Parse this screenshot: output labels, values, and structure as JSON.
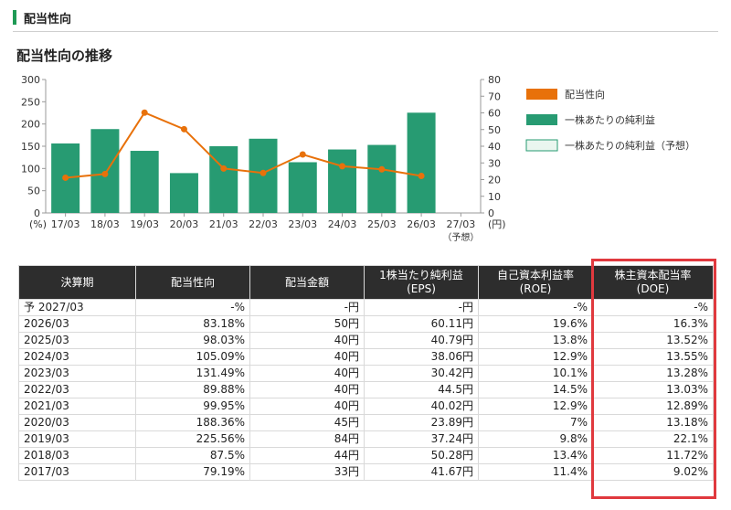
{
  "section": {
    "title": "配当性向"
  },
  "chart_data": {
    "type": "bar",
    "title": "配当性向の推移",
    "categories": [
      "17/03",
      "18/03",
      "19/03",
      "20/03",
      "21/03",
      "22/03",
      "23/03",
      "24/03",
      "25/03",
      "26/03",
      "27/03"
    ],
    "category_sub": [
      "",
      "",
      "",
      "",
      "",
      "",
      "",
      "",
      "",
      "",
      "（予想）"
    ],
    "left_axis": {
      "unit": "(%)",
      "ylim": [
        0,
        300
      ],
      "ticks": [
        0,
        50,
        100,
        150,
        200,
        250,
        300
      ]
    },
    "right_axis": {
      "unit": "(円)",
      "ylim": [
        0,
        80
      ],
      "ticks": [
        0,
        10,
        20,
        30,
        40,
        50,
        60,
        70,
        80
      ]
    },
    "series": [
      {
        "name": "配当性向",
        "kind": "line",
        "axis": "left",
        "color": "#e8710a",
        "values": [
          79.19,
          87.5,
          225.56,
          188.36,
          99.95,
          89.88,
          131.49,
          105.09,
          98.03,
          83.18,
          null
        ]
      },
      {
        "name": "一株あたりの純利益",
        "kind": "bar",
        "axis": "right",
        "color": "#279b72",
        "values": [
          41.67,
          50.28,
          37.24,
          23.89,
          40.02,
          44.5,
          30.42,
          38.06,
          40.79,
          60.11,
          null
        ]
      },
      {
        "name": "一株あたりの純利益（予想）",
        "kind": "bar",
        "axis": "right",
        "color": "#eaf6ef",
        "border": "#279b72",
        "values": [
          null,
          null,
          null,
          null,
          null,
          null,
          null,
          null,
          null,
          null,
          null
        ]
      }
    ],
    "grid": false,
    "legend_position": "right"
  },
  "table": {
    "headers": [
      [
        "決算期"
      ],
      [
        "配当性向"
      ],
      [
        "配当金額"
      ],
      [
        "1株当たり純利益",
        "(EPS)"
      ],
      [
        "自己資本利益率",
        "(ROE)"
      ],
      [
        "株主資本配当率",
        "(DOE)"
      ]
    ],
    "rows": [
      [
        "予 2027/03",
        "-%",
        "-円",
        "-円",
        "-%",
        "-%"
      ],
      [
        "2026/03",
        "83.18%",
        "50円",
        "60.11円",
        "19.6%",
        "16.3%"
      ],
      [
        "2025/03",
        "98.03%",
        "40円",
        "40.79円",
        "13.8%",
        "13.52%"
      ],
      [
        "2024/03",
        "105.09%",
        "40円",
        "38.06円",
        "12.9%",
        "13.55%"
      ],
      [
        "2023/03",
        "131.49%",
        "40円",
        "30.42円",
        "10.1%",
        "13.28%"
      ],
      [
        "2022/03",
        "89.88%",
        "40円",
        "44.5円",
        "14.5%",
        "13.03%"
      ],
      [
        "2021/03",
        "99.95%",
        "40円",
        "40.02円",
        "12.9%",
        "12.89%"
      ],
      [
        "2020/03",
        "188.36%",
        "45円",
        "23.89円",
        "7%",
        "13.18%"
      ],
      [
        "2019/03",
        "225.56%",
        "84円",
        "37.24円",
        "9.8%",
        "22.1%"
      ],
      [
        "2018/03",
        "87.5%",
        "44円",
        "50.28円",
        "13.4%",
        "11.72%"
      ],
      [
        "2017/03",
        "79.19%",
        "33円",
        "41.67円",
        "11.4%",
        "9.02%"
      ]
    ]
  }
}
